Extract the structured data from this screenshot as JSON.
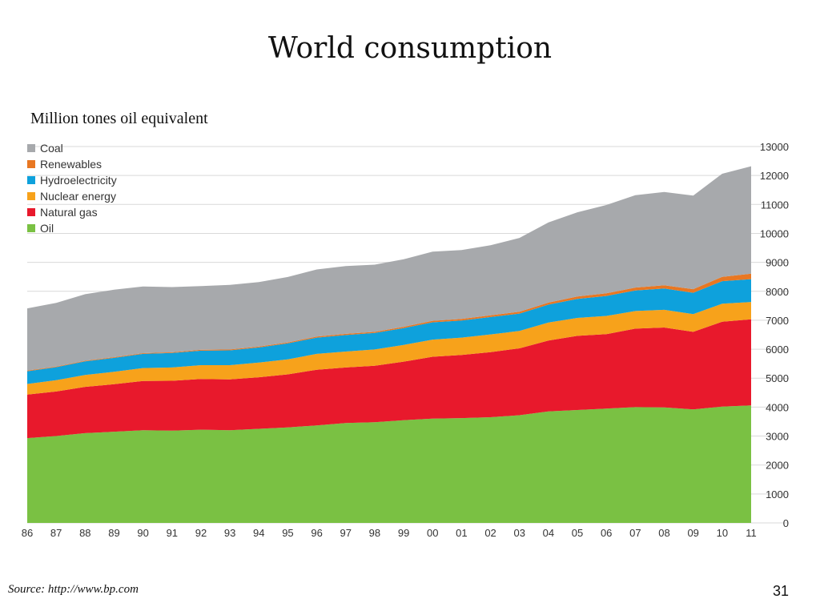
{
  "slide": {
    "title": "World consumption",
    "unit_label": "Million tones oil equivalent",
    "source": "Source: http://www.bp.com",
    "page_number": "31"
  },
  "chart_data": {
    "type": "area",
    "stacked": true,
    "categories": [
      "86",
      "87",
      "88",
      "89",
      "90",
      "91",
      "92",
      "93",
      "94",
      "95",
      "96",
      "97",
      "98",
      "99",
      "00",
      "01",
      "02",
      "03",
      "04",
      "05",
      "06",
      "07",
      "08",
      "09",
      "10",
      "11"
    ],
    "ylim": [
      0,
      13000
    ],
    "yticks": [
      0,
      1000,
      2000,
      3000,
      4000,
      5000,
      6000,
      7000,
      8000,
      9000,
      10000,
      11000,
      12000,
      13000
    ],
    "y_axis_side": "right",
    "grid": true,
    "legend_position": "top-left",
    "series": [
      {
        "name": "Oil",
        "color": "#7ac143",
        "values": [
          2930,
          3000,
          3100,
          3150,
          3200,
          3190,
          3220,
          3200,
          3250,
          3300,
          3370,
          3450,
          3480,
          3550,
          3600,
          3620,
          3650,
          3720,
          3850,
          3900,
          3950,
          4000,
          3990,
          3920,
          4020,
          4060
        ]
      },
      {
        "name": "Natural gas",
        "color": "#e8192c",
        "values": [
          1500,
          1540,
          1600,
          1640,
          1700,
          1720,
          1750,
          1760,
          1780,
          1830,
          1920,
          1920,
          1950,
          2020,
          2140,
          2180,
          2250,
          2310,
          2450,
          2560,
          2570,
          2710,
          2760,
          2680,
          2930,
          2970
        ]
      },
      {
        "name": "Nuclear energy",
        "color": "#f7a21b",
        "values": [
          370,
          390,
          410,
          430,
          450,
          460,
          480,
          490,
          510,
          520,
          550,
          550,
          560,
          580,
          590,
          600,
          610,
          600,
          620,
          620,
          630,
          610,
          610,
          610,
          620,
          600
        ]
      },
      {
        "name": "Hydroelectricity",
        "color": "#0ea1dc",
        "values": [
          440,
          450,
          470,
          480,
          490,
          500,
          500,
          510,
          520,
          550,
          560,
          570,
          570,
          580,
          600,
          590,
          600,
          600,
          620,
          660,
          690,
          710,
          740,
          740,
          780,
          790
        ]
      },
      {
        "name": "Renewables",
        "color": "#e87722",
        "values": [
          20,
          20,
          20,
          25,
          25,
          25,
          30,
          30,
          30,
          35,
          35,
          40,
          40,
          45,
          50,
          55,
          60,
          65,
          70,
          80,
          90,
          100,
          110,
          125,
          150,
          190
        ]
      },
      {
        "name": "Coal",
        "color": "#a7a9ac",
        "values": [
          2150,
          2200,
          2300,
          2330,
          2300,
          2250,
          2200,
          2230,
          2230,
          2260,
          2320,
          2340,
          2320,
          2330,
          2390,
          2380,
          2420,
          2550,
          2770,
          2910,
          3050,
          3190,
          3220,
          3230,
          3560,
          3710
        ]
      }
    ]
  }
}
